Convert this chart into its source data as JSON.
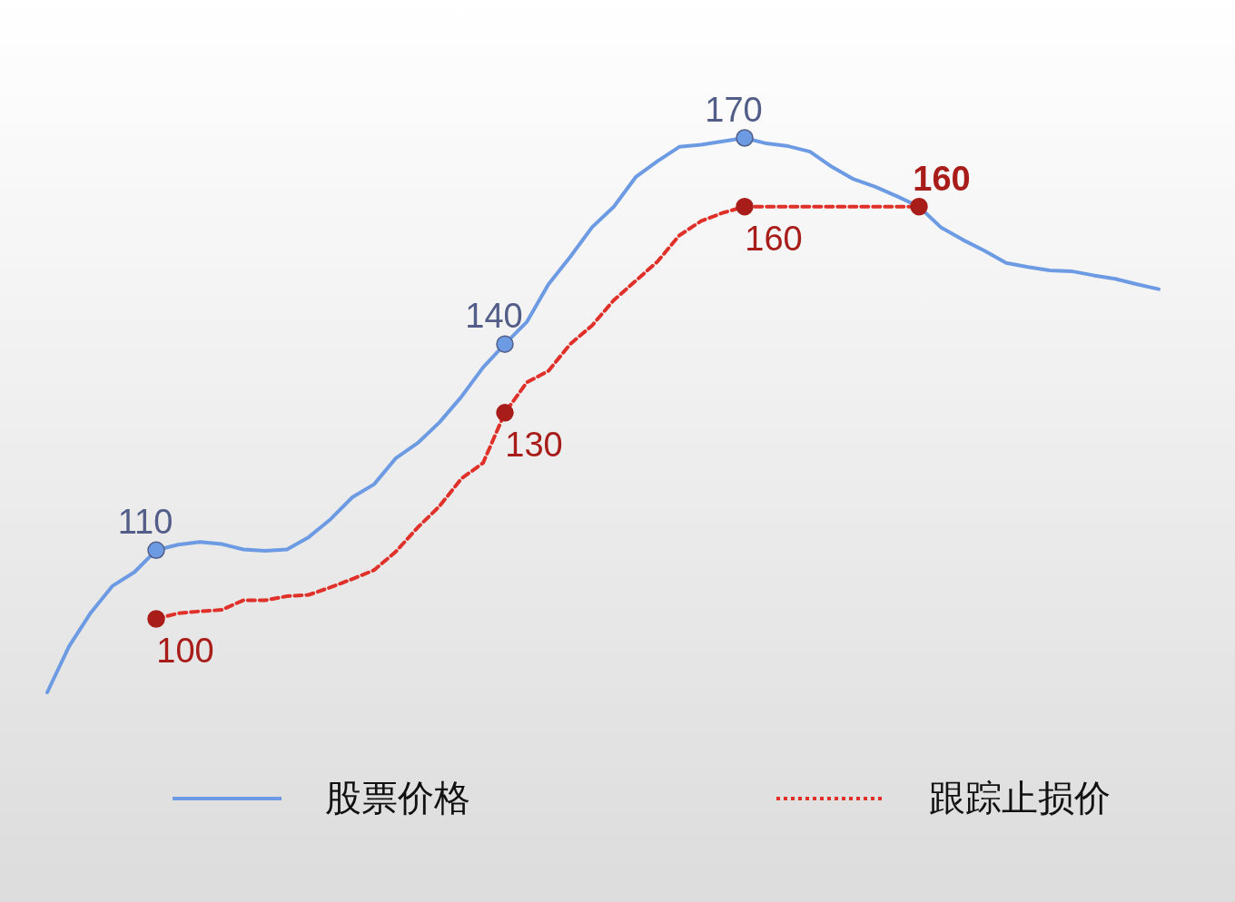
{
  "chart_data": {
    "type": "line",
    "legend": "bottom",
    "categories": [
      null,
      null,
      null,
      null,
      null,
      null,
      null,
      null,
      null,
      null,
      null,
      null,
      null,
      null,
      null,
      null,
      null,
      null,
      null,
      null,
      null,
      null,
      null,
      null,
      null,
      null,
      null,
      null,
      null,
      null,
      null,
      null,
      null,
      null,
      null,
      null,
      null,
      null,
      null,
      null,
      null,
      null,
      null,
      null,
      null,
      null,
      null,
      null,
      null,
      null,
      null,
      null
    ],
    "series": [
      {
        "name": "股票价格",
        "color": "#6d9be3",
        "line_style": "solid",
        "values": [
          89.3,
          96.0,
          100.9,
          104.8,
          106.8,
          110,
          110.8,
          111.2,
          110.9,
          110.1,
          109.9,
          110.1,
          111.9,
          114.5,
          117.7,
          119.6,
          123.4,
          125.6,
          128.6,
          132.3,
          136.6,
          140,
          143.2,
          148.7,
          152.7,
          157.0,
          160.0,
          164.3,
          166.6,
          168.7,
          169.0,
          169.5,
          170,
          169.2,
          168.8,
          168.0,
          165.8,
          164.0,
          162.9,
          161.5,
          160,
          157.0,
          155.2,
          153.6,
          151.8,
          151.2,
          150.7,
          150.6,
          150.0,
          149.5,
          148.7,
          148.0
        ],
        "value_labels": [
          null,
          null,
          null,
          null,
          null,
          "110",
          null,
          null,
          null,
          null,
          null,
          null,
          null,
          null,
          null,
          null,
          null,
          null,
          null,
          null,
          null,
          "140",
          null,
          null,
          null,
          null,
          null,
          null,
          null,
          null,
          null,
          null,
          "170",
          null,
          null,
          null,
          null,
          null,
          null,
          null,
          null,
          null,
          null,
          null,
          null,
          null,
          null,
          null,
          null,
          null,
          null,
          null
        ]
      },
      {
        "name": "跟踪止损价",
        "color": "#e0302a",
        "line_style": "dashed",
        "values": [
          null,
          null,
          null,
          null,
          null,
          100,
          100.8,
          101.1,
          101.3,
          102.7,
          102.7,
          103.3,
          103.5,
          104.6,
          105.8,
          107.1,
          109.8,
          113.3,
          116.4,
          120.4,
          122.7,
          130,
          134.4,
          136.1,
          140.0,
          142.7,
          146.4,
          149.2,
          152.0,
          155.8,
          157.9,
          159.1,
          160,
          160,
          160,
          160,
          160,
          160,
          160,
          160,
          160,
          null,
          null,
          null,
          null,
          null,
          null,
          null,
          null,
          null,
          null,
          null
        ],
        "value_labels": [
          null,
          null,
          null,
          null,
          null,
          "100",
          null,
          null,
          null,
          null,
          null,
          null,
          null,
          null,
          null,
          null,
          null,
          null,
          null,
          null,
          null,
          "130",
          null,
          null,
          null,
          null,
          null,
          null,
          null,
          null,
          null,
          null,
          "160",
          null,
          null,
          null,
          null,
          null,
          null,
          null,
          "160",
          null,
          null,
          null,
          null,
          null,
          null,
          null,
          null,
          null,
          null,
          null
        ]
      }
    ]
  }
}
